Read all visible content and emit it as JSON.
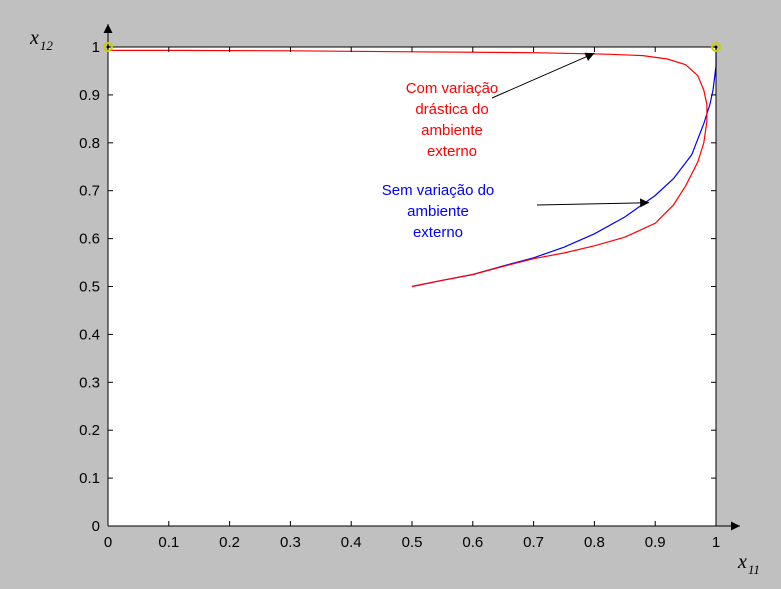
{
  "chart_data": {
    "type": "line",
    "x_axis_label": {
      "var": "x",
      "sub": "11"
    },
    "y_axis_label": {
      "var": "x",
      "sub": "12"
    },
    "xlim": [
      0,
      1
    ],
    "ylim": [
      0,
      1
    ],
    "x_ticks": [
      "0",
      "0.1",
      "0.2",
      "0.3",
      "0.4",
      "0.5",
      "0.6",
      "0.7",
      "0.8",
      "0.9",
      "1"
    ],
    "y_ticks": [
      "0",
      "0.1",
      "0.2",
      "0.3",
      "0.4",
      "0.5",
      "0.6",
      "0.7",
      "0.8",
      "0.9",
      "1"
    ],
    "grid": false,
    "series": [
      {
        "color": "#0000ff",
        "x": [
          0.5,
          0.55,
          0.6,
          0.65,
          0.7,
          0.75,
          0.8,
          0.85,
          0.9,
          0.93,
          0.96,
          0.98,
          0.99,
          0.995,
          1.0,
          1.0
        ],
        "y": [
          0.5,
          0.513,
          0.525,
          0.543,
          0.56,
          0.582,
          0.61,
          0.645,
          0.69,
          0.725,
          0.775,
          0.84,
          0.88,
          0.91,
          0.96,
          1.0
        ]
      },
      {
        "color": "#ff0000",
        "x": [
          0.5,
          0.55,
          0.6,
          0.65,
          0.7,
          0.75,
          0.8,
          0.85,
          0.9,
          0.93,
          0.95,
          0.97,
          0.98,
          0.985,
          0.985,
          0.98,
          0.97,
          0.95,
          0.92,
          0.88,
          0.82,
          0.7,
          0.5,
          0.3,
          0.1,
          0.0
        ],
        "y": [
          0.5,
          0.513,
          0.525,
          0.542,
          0.558,
          0.57,
          0.585,
          0.603,
          0.632,
          0.67,
          0.71,
          0.76,
          0.8,
          0.845,
          0.88,
          0.91,
          0.94,
          0.963,
          0.975,
          0.982,
          0.985,
          0.988,
          0.99,
          0.992,
          0.993,
          0.993
        ]
      }
    ],
    "markers": [
      {
        "x": 0,
        "y": 1,
        "color": "#cccc00"
      },
      {
        "x": 1,
        "y": 1,
        "color": "#cccc00"
      }
    ],
    "annotations": [
      {
        "lines": [
          "Com variação",
          "drástica do",
          "ambiente",
          "externo"
        ],
        "color": "#ff0000",
        "arrow_to": {
          "x": 0.8,
          "y": 0.987
        }
      },
      {
        "lines": [
          "Sem variação do",
          "ambiente",
          "externo"
        ],
        "color": "#0000ff",
        "arrow_to": {
          "x": 0.89,
          "y": 0.675
        }
      }
    ]
  }
}
